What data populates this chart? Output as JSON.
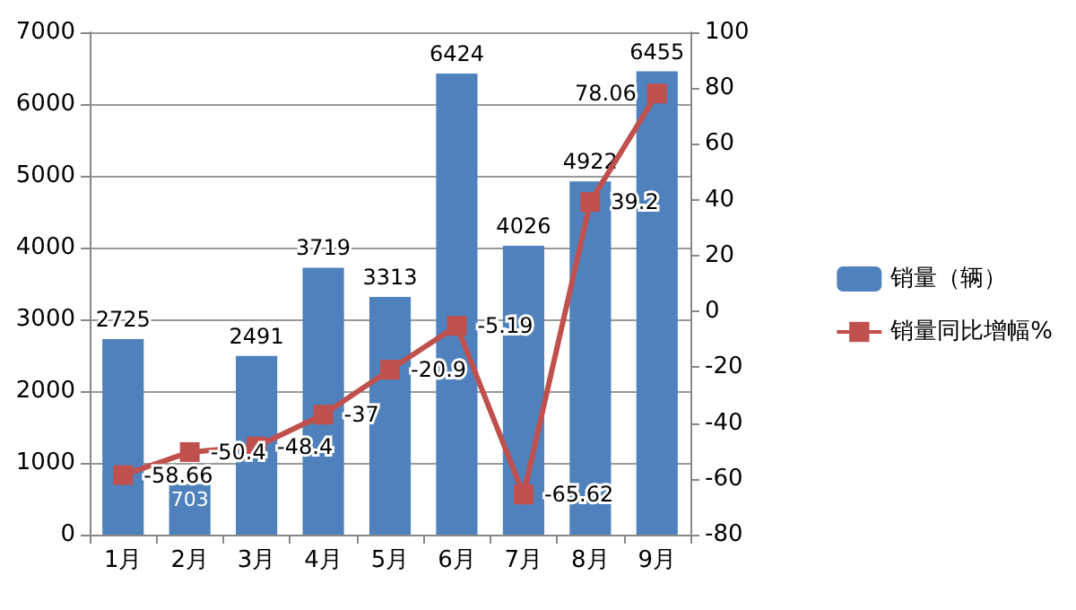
{
  "chart_data": {
    "type": "bar",
    "categories": [
      "1月",
      "2月",
      "3月",
      "4月",
      "5月",
      "6月",
      "7月",
      "8月",
      "9月"
    ],
    "series": [
      {
        "name": "销量（辆）",
        "color": "#4f81bd",
        "values": [
          2725,
          703,
          2491,
          3719,
          3313,
          6424,
          4026,
          4922,
          6455
        ]
      },
      {
        "name": "销量同比增幅%",
        "type": "line",
        "axis": "y2",
        "color": "#c0504d",
        "marker": "square",
        "values": [
          -58.66,
          -50.4,
          -48.4,
          -37,
          -20.9,
          -5.19,
          -65.62,
          39.2,
          78.06
        ]
      }
    ],
    "ylim": [
      0,
      7000
    ],
    "yticks": [
      0,
      1000,
      2000,
      3000,
      4000,
      5000,
      6000,
      7000
    ],
    "y2lim": [
      -80,
      100
    ],
    "y2ticks": [
      -80,
      -60,
      -40,
      -20,
      0,
      20,
      40,
      60,
      80,
      100
    ],
    "grid": "y",
    "legend": "right",
    "data_labels": true
  }
}
